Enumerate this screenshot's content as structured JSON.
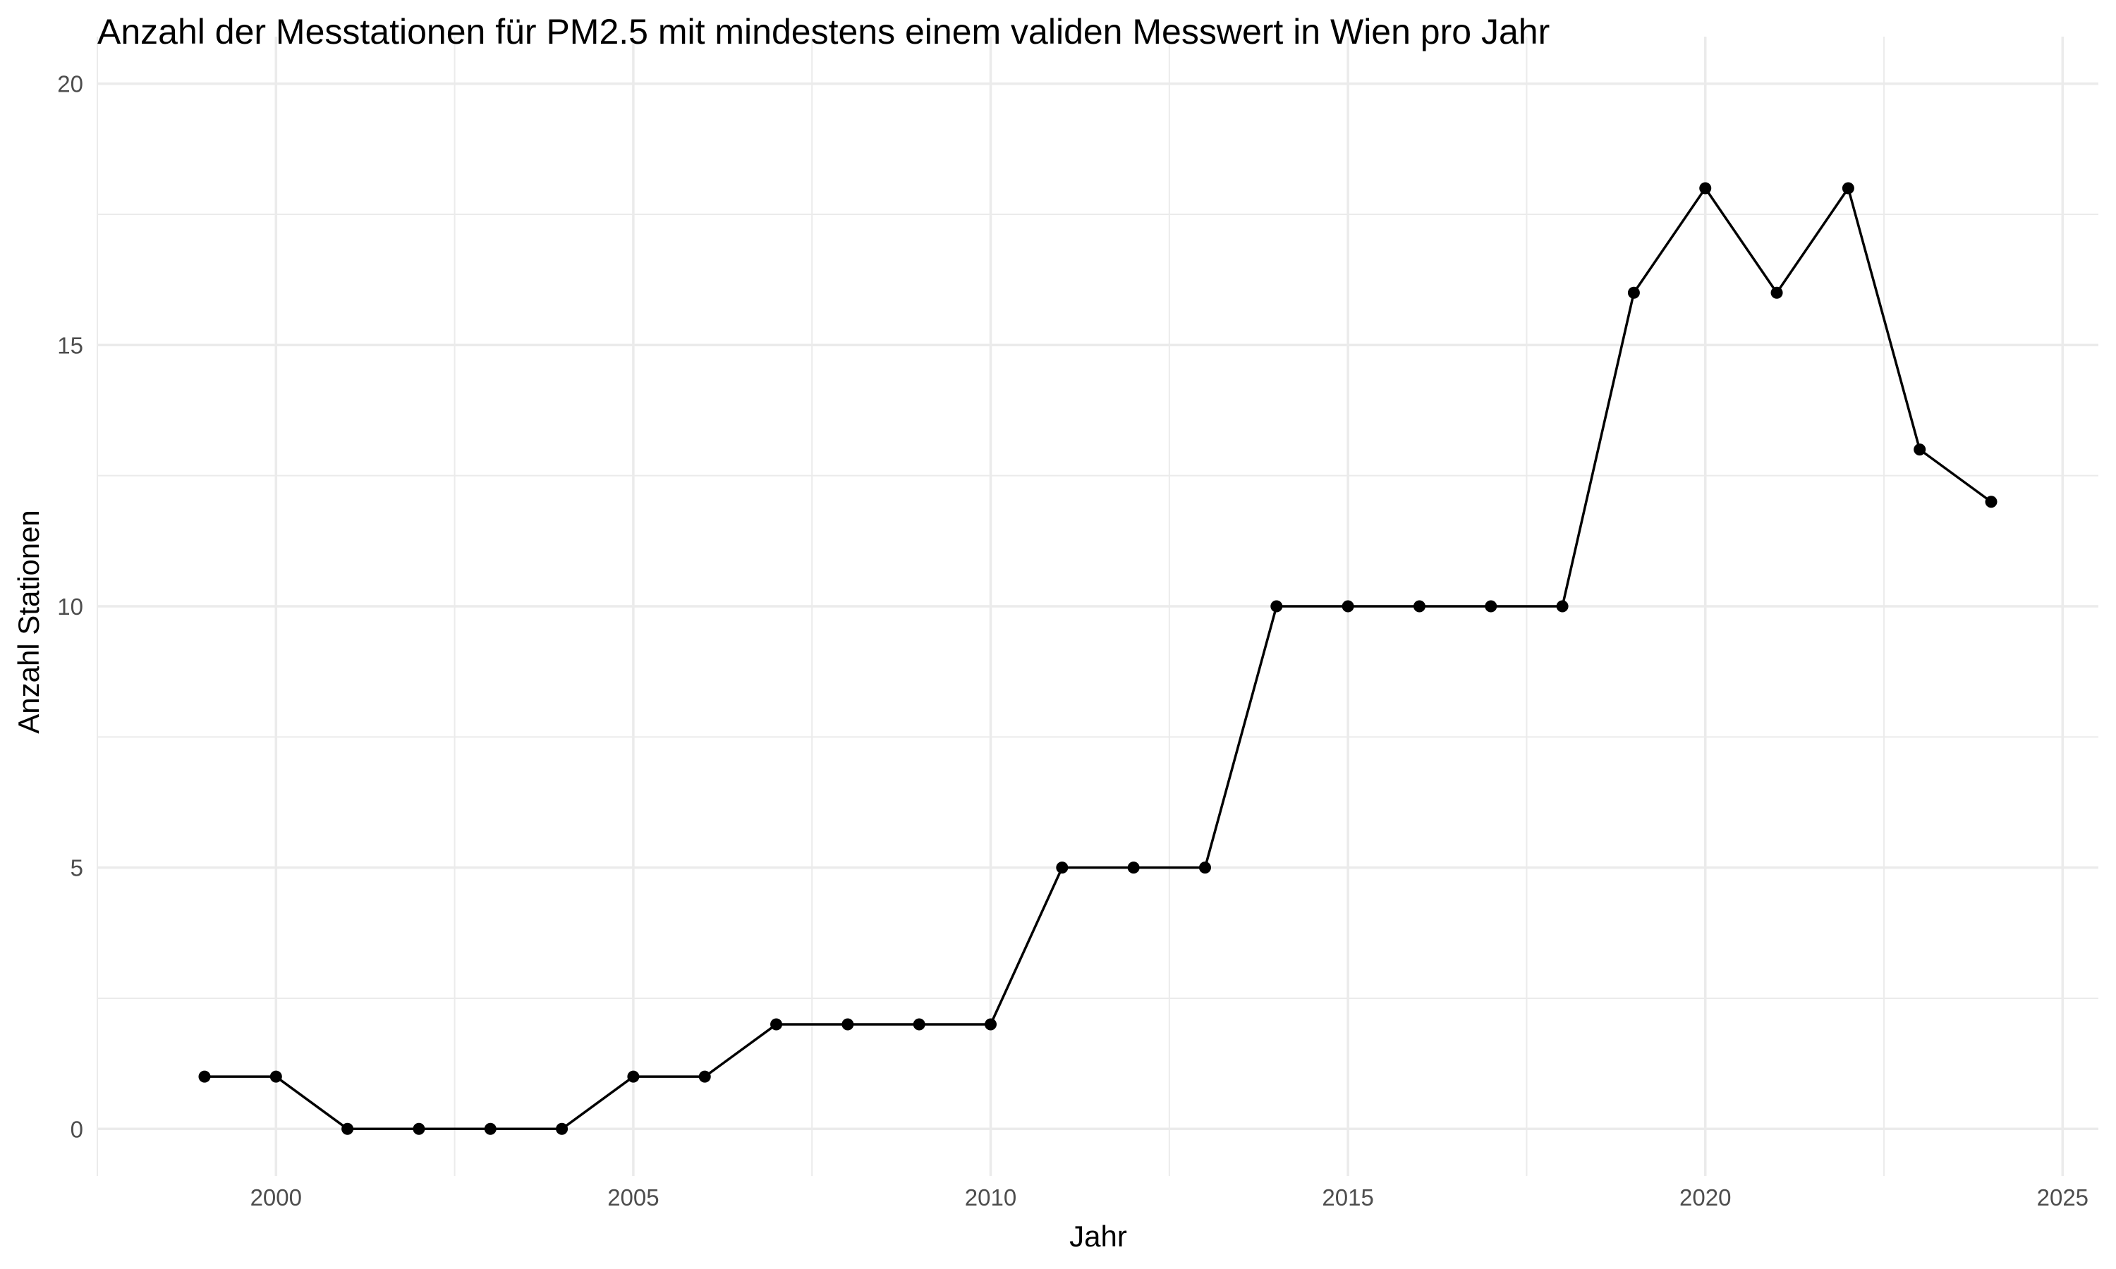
{
  "chart_data": {
    "type": "line",
    "title": "Anzahl der Messtationen für PM2.5 mit mindestens einem validen Messwert in Wien pro Jahr",
    "xlabel": "Jahr",
    "ylabel": "Anzahl Stationen",
    "xlim": [
      1997.5,
      2025.5
    ],
    "ylim": [
      -0.9,
      20.9
    ],
    "x_ticks": [
      2000,
      2005,
      2010,
      2015,
      2020,
      2025
    ],
    "y_ticks": [
      0,
      5,
      10,
      15,
      20
    ],
    "x_minor_ticks": [
      1997.5,
      2002.5,
      2007.5,
      2012.5,
      2017.5,
      2022.5
    ],
    "y_minor_ticks": [
      2.5,
      7.5,
      12.5,
      17.5
    ],
    "grid": true,
    "legend": "none",
    "series": [
      {
        "color": "#000000",
        "x": [
          1999,
          2000,
          2001,
          2002,
          2003,
          2004,
          2005,
          2006,
          2007,
          2008,
          2009,
          2010,
          2011,
          2012,
          2013,
          2014,
          2015,
          2016,
          2017,
          2018,
          2019,
          2020,
          2021,
          2022,
          2023,
          2024
        ],
        "y": [
          1,
          1,
          0,
          0,
          0,
          0,
          1,
          1,
          2,
          2,
          2,
          2,
          5,
          5,
          5,
          10,
          10,
          10,
          10,
          10,
          16,
          18,
          16,
          18,
          13,
          12
        ]
      }
    ]
  }
}
